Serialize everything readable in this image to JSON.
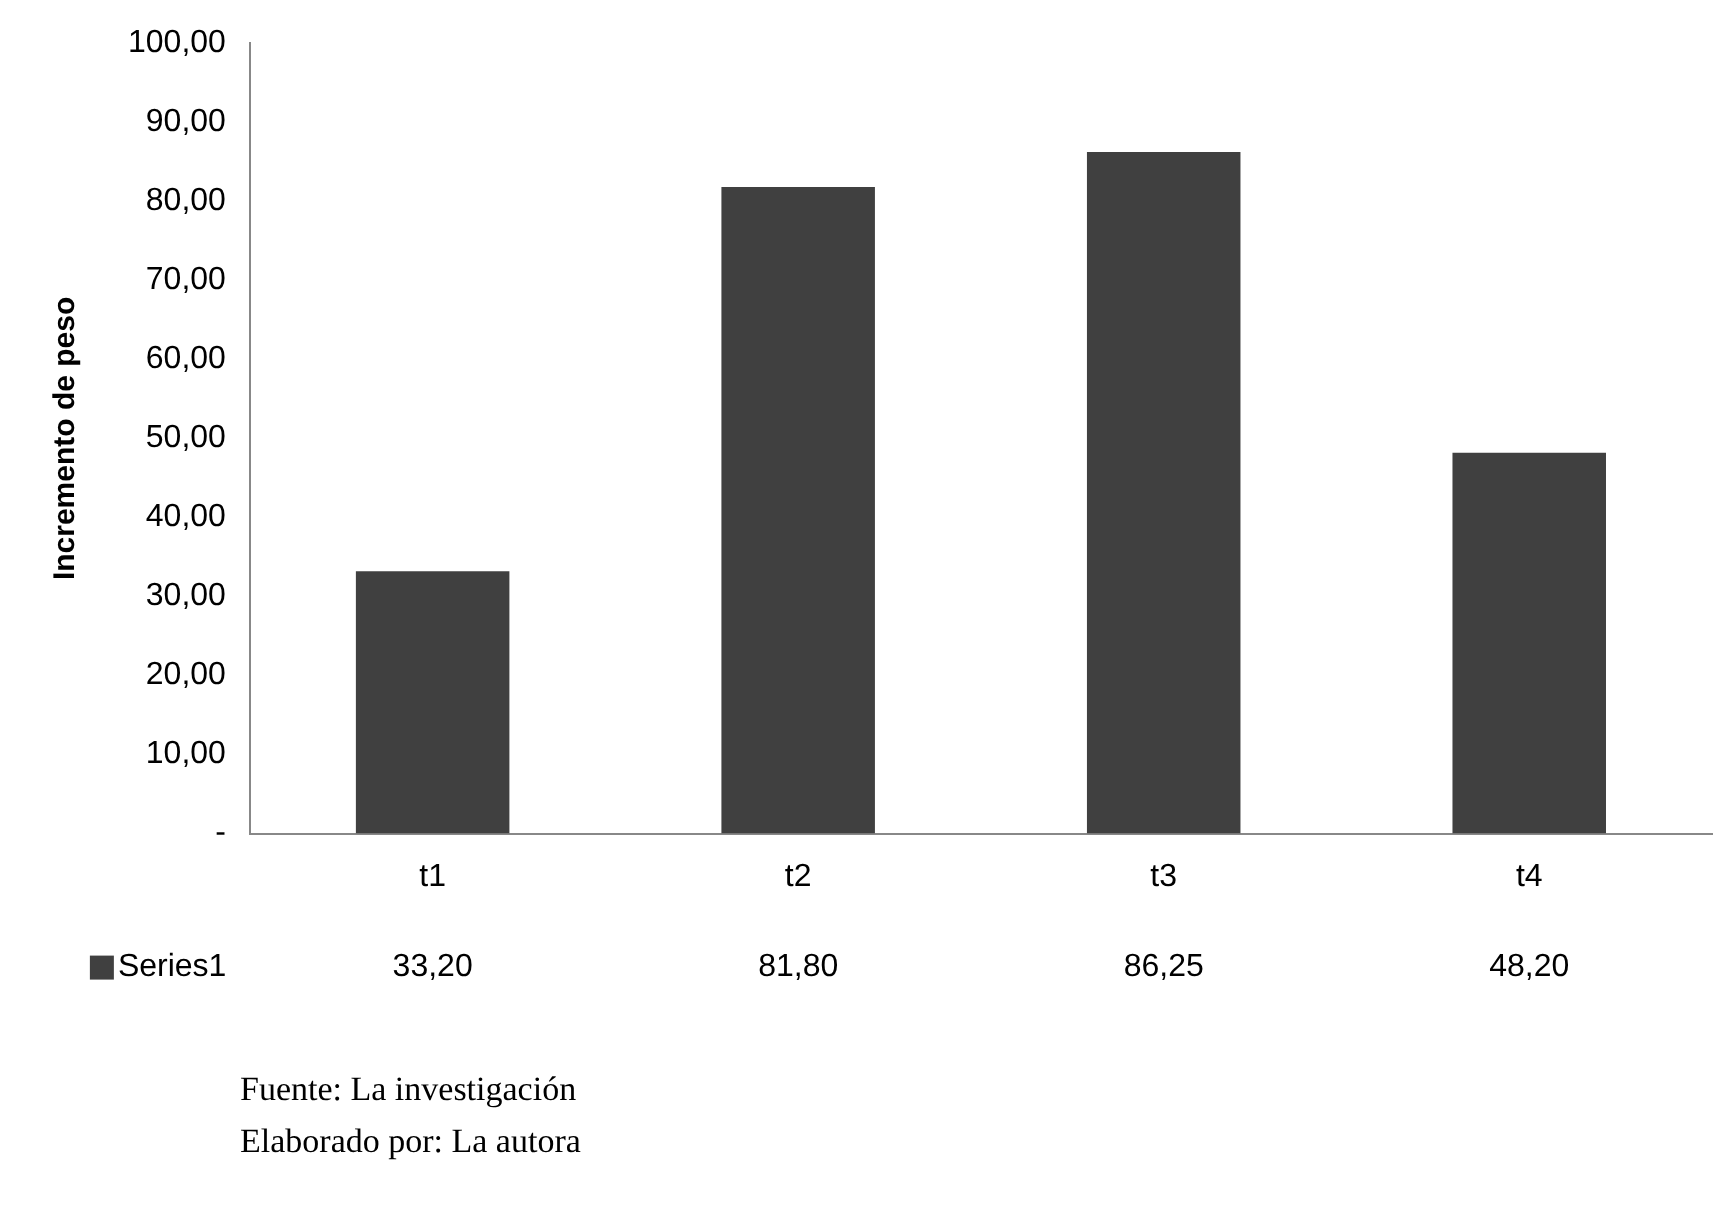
{
  "chart_data": {
    "type": "bar",
    "ylabel": "Incremento de peso",
    "categories": [
      "t1",
      "t2",
      "t3",
      "t4"
    ],
    "series": [
      {
        "name": "Series1",
        "color": "#404040",
        "values": [
          33.2,
          81.8,
          86.25,
          48.2
        ],
        "value_labels": [
          "33,20",
          "81,80",
          "86,25",
          "48,20"
        ]
      }
    ],
    "ylim": [
      0,
      100
    ],
    "yticks": [
      {
        "value": 0,
        "label": "-"
      },
      {
        "value": 10,
        "label": "10,00"
      },
      {
        "value": 20,
        "label": "20,00"
      },
      {
        "value": 30,
        "label": "30,00"
      },
      {
        "value": 40,
        "label": "40,00"
      },
      {
        "value": 50,
        "label": "50,00"
      },
      {
        "value": 60,
        "label": "60,00"
      },
      {
        "value": 70,
        "label": "70,00"
      },
      {
        "value": 80,
        "label": "80,00"
      },
      {
        "value": 90,
        "label": "90,00"
      },
      {
        "value": 100,
        "label": "100,00"
      }
    ],
    "grid": false,
    "legend": "bottom",
    "annotations": [
      "Fuente: La investigación",
      "Elaborado por: La autora"
    ]
  }
}
